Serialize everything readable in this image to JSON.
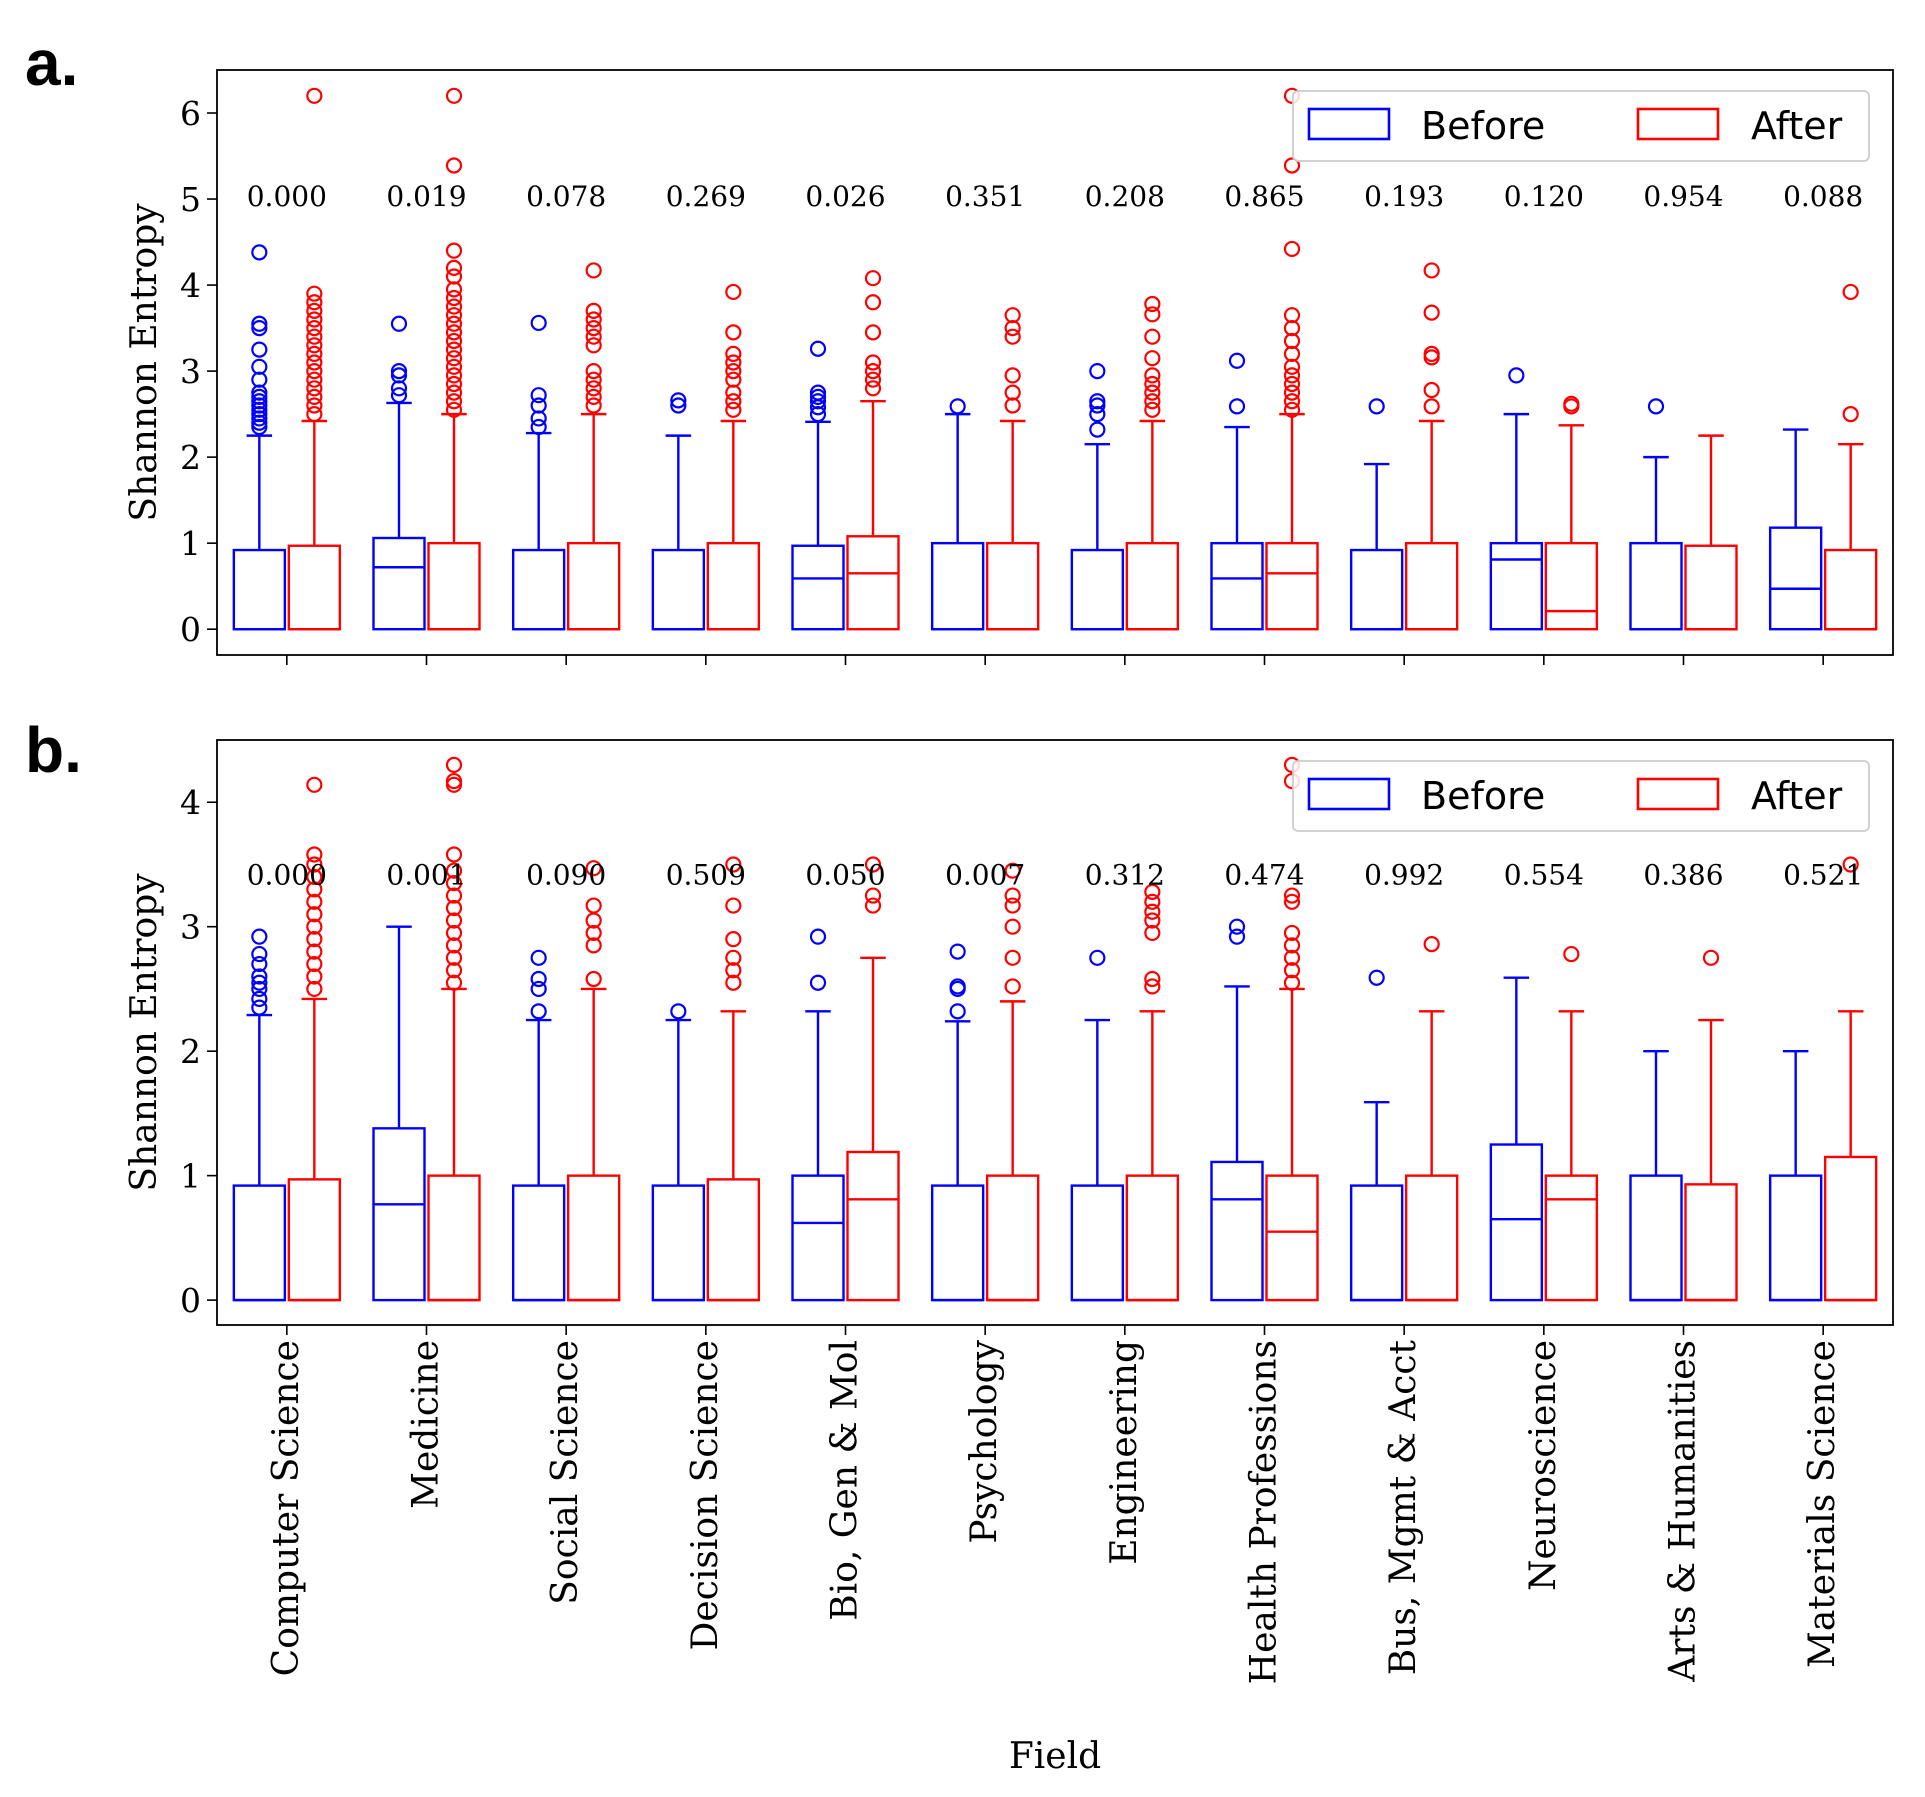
{
  "chart_data": {
    "type": "box",
    "xlabel": "Field",
    "categories": [
      "Computer Science",
      "Medicine",
      "Social Science",
      "Decision Science",
      "Bio, Gen & Mol",
      "Psychology",
      "Engineering",
      "Health Professions",
      "Bus, Mgmt & Acct",
      "Neuroscience",
      "Arts & Humanities",
      "Materials Science"
    ],
    "legend": {
      "position": "top-right",
      "entries": [
        "Before",
        "After"
      ]
    },
    "colors": {
      "before": "#0000ff",
      "after": "#ff0000"
    },
    "panels": [
      {
        "letter": "a.",
        "ylabel": "Shannon Entropy",
        "ylim": [
          -0.3,
          6.5
        ],
        "yticks": [
          "0",
          "1",
          "2",
          "3",
          "4",
          "5",
          "6"
        ],
        "pvalues": [
          "0.000",
          "0.019",
          "0.078",
          "0.269",
          "0.026",
          "0.351",
          "0.208",
          "0.865",
          "0.193",
          "0.120",
          "0.954",
          "0.088"
        ],
        "before": [
          {
            "q1": 0,
            "median": 0,
            "q3": 0.92,
            "whislo": 0,
            "whishi": 2.25,
            "fliers": [
              2.35,
              2.4,
              2.45,
              2.5,
              2.55,
              2.6,
              2.65,
              2.7,
              2.75,
              2.9,
              3.05,
              3.25,
              3.5,
              3.55,
              4.38
            ]
          },
          {
            "q1": 0,
            "median": 0.72,
            "q3": 1.06,
            "whislo": 0,
            "whishi": 2.63,
            "fliers": [
              2.72,
              2.8,
              2.95,
              3.0,
              3.55
            ]
          },
          {
            "q1": 0,
            "median": 0,
            "q3": 0.92,
            "whislo": 0,
            "whishi": 2.28,
            "fliers": [
              2.35,
              2.45,
              2.6,
              2.72,
              3.56
            ]
          },
          {
            "q1": 0,
            "median": 0,
            "q3": 0.92,
            "whislo": 0,
            "whishi": 2.25,
            "fliers": [
              2.6,
              2.66
            ]
          },
          {
            "q1": 0,
            "median": 0.59,
            "q3": 0.97,
            "whislo": 0,
            "whishi": 2.41,
            "fliers": [
              2.5,
              2.58,
              2.65,
              2.7,
              2.75,
              3.26
            ]
          },
          {
            "q1": 0,
            "median": 0,
            "q3": 1.0,
            "whislo": 0,
            "whishi": 2.5,
            "fliers": [
              2.59
            ]
          },
          {
            "q1": 0,
            "median": 0,
            "q3": 0.92,
            "whislo": 0,
            "whishi": 2.15,
            "fliers": [
              2.32,
              2.5,
              2.6,
              2.65,
              3.0
            ]
          },
          {
            "q1": 0,
            "median": 0.59,
            "q3": 1.0,
            "whislo": 0,
            "whishi": 2.35,
            "fliers": [
              2.59,
              3.12
            ]
          },
          {
            "q1": 0,
            "median": 0,
            "q3": 0.92,
            "whislo": 0,
            "whishi": 1.92,
            "fliers": [
              2.59
            ]
          },
          {
            "q1": 0,
            "median": 0.81,
            "q3": 1.0,
            "whislo": 0,
            "whishi": 2.5,
            "fliers": [
              2.95
            ]
          },
          {
            "q1": 0,
            "median": 0,
            "q3": 1.0,
            "whislo": 0,
            "whishi": 2.0,
            "fliers": [
              2.59
            ]
          },
          {
            "q1": 0,
            "median": 0.47,
            "q3": 1.18,
            "whislo": 0,
            "whishi": 2.32,
            "fliers": []
          }
        ],
        "after": [
          {
            "q1": 0,
            "median": 0,
            "q3": 0.97,
            "whislo": 0,
            "whishi": 2.42,
            "fliers": [
              2.5,
              2.6,
              2.7,
              2.8,
              2.9,
              3.0,
              3.1,
              3.2,
              3.3,
              3.4,
              3.5,
              3.6,
              3.7,
              3.8,
              3.9,
              6.2
            ]
          },
          {
            "q1": 0,
            "median": 0,
            "q3": 1.0,
            "whislo": 0,
            "whishi": 2.5,
            "fliers": [
              2.55,
              2.65,
              2.75,
              2.85,
              2.95,
              3.05,
              3.15,
              3.25,
              3.35,
              3.45,
              3.55,
              3.65,
              3.75,
              3.85,
              3.95,
              4.1,
              4.2,
              4.4,
              5.39,
              6.2
            ]
          },
          {
            "q1": 0,
            "median": 0,
            "q3": 1.0,
            "whislo": 0,
            "whishi": 2.5,
            "fliers": [
              2.6,
              2.7,
              2.8,
              2.9,
              3.0,
              3.3,
              3.4,
              3.5,
              3.6,
              3.7,
              4.17
            ]
          },
          {
            "q1": 0,
            "median": 0,
            "q3": 1.0,
            "whislo": 0,
            "whishi": 2.42,
            "fliers": [
              2.55,
              2.65,
              2.75,
              2.9,
              3.0,
              3.1,
              3.2,
              3.45,
              3.92
            ]
          },
          {
            "q1": 0,
            "median": 0.65,
            "q3": 1.08,
            "whislo": 0,
            "whishi": 2.65,
            "fliers": [
              2.8,
              2.9,
              3.0,
              3.1,
              3.45,
              3.8,
              4.08
            ]
          },
          {
            "q1": 0,
            "median": 0,
            "q3": 1.0,
            "whislo": 0,
            "whishi": 2.42,
            "fliers": [
              2.6,
              2.75,
              2.95,
              3.4,
              3.5,
              3.65
            ]
          },
          {
            "q1": 0,
            "median": 0,
            "q3": 1.0,
            "whislo": 0,
            "whishi": 2.42,
            "fliers": [
              2.55,
              2.65,
              2.75,
              2.85,
              2.95,
              3.15,
              3.4,
              3.66,
              3.78
            ]
          },
          {
            "q1": 0,
            "median": 0.65,
            "q3": 1.0,
            "whislo": 0,
            "whishi": 2.5,
            "fliers": [
              2.55,
              2.65,
              2.75,
              2.85,
              2.95,
              3.05,
              3.2,
              3.35,
              3.5,
              3.65,
              4.42,
              5.39,
              6.2
            ]
          },
          {
            "q1": 0,
            "median": 0,
            "q3": 1.0,
            "whislo": 0,
            "whishi": 2.42,
            "fliers": [
              2.59,
              2.78,
              3.16,
              3.2,
              3.68,
              4.17
            ]
          },
          {
            "q1": 0,
            "median": 0.21,
            "q3": 1.0,
            "whislo": 0,
            "whishi": 2.37,
            "fliers": [
              2.59,
              2.62
            ]
          },
          {
            "q1": 0,
            "median": 0,
            "q3": 0.97,
            "whislo": 0,
            "whishi": 2.25,
            "fliers": []
          },
          {
            "q1": 0,
            "median": 0,
            "q3": 0.92,
            "whislo": 0,
            "whishi": 2.15,
            "fliers": [
              2.5,
              3.92
            ]
          }
        ]
      },
      {
        "letter": "b.",
        "ylabel": "Shannon Entropy",
        "ylim": [
          -0.2,
          4.5
        ],
        "yticks": [
          "0",
          "1",
          "2",
          "3",
          "4"
        ],
        "pvalues": [
          "0.000",
          "0.001",
          "0.090",
          "0.509",
          "0.050",
          "0.007",
          "0.312",
          "0.474",
          "0.992",
          "0.554",
          "0.386",
          "0.521"
        ],
        "before": [
          {
            "q1": 0,
            "median": 0,
            "q3": 0.92,
            "whislo": 0,
            "whishi": 2.29,
            "fliers": [
              2.35,
              2.42,
              2.5,
              2.55,
              2.6,
              2.7,
              2.78,
              2.92
            ]
          },
          {
            "q1": 0,
            "median": 0.77,
            "q3": 1.38,
            "whislo": 0,
            "whishi": 3.0,
            "fliers": []
          },
          {
            "q1": 0,
            "median": 0,
            "q3": 0.92,
            "whislo": 0,
            "whishi": 2.25,
            "fliers": [
              2.32,
              2.5,
              2.58,
              2.75
            ]
          },
          {
            "q1": 0,
            "median": 0,
            "q3": 0.92,
            "whislo": 0,
            "whishi": 2.25,
            "fliers": [
              2.32
            ]
          },
          {
            "q1": 0,
            "median": 0.62,
            "q3": 1.0,
            "whislo": 0,
            "whishi": 2.32,
            "fliers": [
              2.55,
              2.92
            ]
          },
          {
            "q1": 0,
            "median": 0,
            "q3": 0.92,
            "whislo": 0,
            "whishi": 2.24,
            "fliers": [
              2.32,
              2.5,
              2.52,
              2.8
            ]
          },
          {
            "q1": 0,
            "median": 0,
            "q3": 0.92,
            "whislo": 0,
            "whishi": 2.25,
            "fliers": [
              2.75
            ]
          },
          {
            "q1": 0,
            "median": 0.81,
            "q3": 1.11,
            "whislo": 0,
            "whishi": 2.52,
            "fliers": [
              2.92,
              3.0
            ]
          },
          {
            "q1": 0,
            "median": 0,
            "q3": 0.92,
            "whislo": 0,
            "whishi": 1.59,
            "fliers": [
              2.59
            ]
          },
          {
            "q1": 0,
            "median": 0.65,
            "q3": 1.25,
            "whislo": 0,
            "whishi": 2.59,
            "fliers": []
          },
          {
            "q1": 0,
            "median": 0,
            "q3": 1.0,
            "whislo": 0,
            "whishi": 2.0,
            "fliers": []
          },
          {
            "q1": 0,
            "median": 0,
            "q3": 1.0,
            "whislo": 0,
            "whishi": 2.0,
            "fliers": []
          }
        ],
        "after": [
          {
            "q1": 0,
            "median": 0,
            "q3": 0.97,
            "whislo": 0,
            "whishi": 2.42,
            "fliers": [
              2.5,
              2.6,
              2.7,
              2.8,
              2.9,
              3.0,
              3.1,
              3.2,
              3.3,
              3.4,
              3.5,
              3.58,
              4.14
            ]
          },
          {
            "q1": 0,
            "median": 0,
            "q3": 1.0,
            "whislo": 0,
            "whishi": 2.5,
            "fliers": [
              2.55,
              2.65,
              2.75,
              2.85,
              2.95,
              3.05,
              3.15,
              3.25,
              3.35,
              3.45,
              3.58,
              4.14,
              4.17,
              4.3
            ]
          },
          {
            "q1": 0,
            "median": 0,
            "q3": 1.0,
            "whislo": 0,
            "whishi": 2.5,
            "fliers": [
              2.58,
              2.85,
              2.95,
              3.05,
              3.17,
              3.47
            ]
          },
          {
            "q1": 0,
            "median": 0,
            "q3": 0.97,
            "whislo": 0,
            "whishi": 2.32,
            "fliers": [
              2.55,
              2.65,
              2.75,
              2.9,
              3.17,
              3.5
            ]
          },
          {
            "q1": 0,
            "median": 0.81,
            "q3": 1.19,
            "whislo": 0,
            "whishi": 2.75,
            "fliers": [
              3.17,
              3.25,
              3.5
            ]
          },
          {
            "q1": 0,
            "median": 0,
            "q3": 1.0,
            "whislo": 0,
            "whishi": 2.4,
            "fliers": [
              2.52,
              2.75,
              3.0,
              3.17,
              3.25,
              3.45
            ]
          },
          {
            "q1": 0,
            "median": 0,
            "q3": 1.0,
            "whislo": 0,
            "whishi": 2.32,
            "fliers": [
              2.52,
              2.58,
              2.95,
              3.05,
              3.12,
              3.2,
              3.28
            ]
          },
          {
            "q1": 0,
            "median": 0.55,
            "q3": 1.0,
            "whislo": 0,
            "whishi": 2.5,
            "fliers": [
              2.55,
              2.65,
              2.75,
              2.85,
              2.95,
              3.2,
              3.25,
              4.17,
              4.3
            ]
          },
          {
            "q1": 0,
            "median": 0,
            "q3": 1.0,
            "whislo": 0,
            "whishi": 2.32,
            "fliers": [
              2.86
            ]
          },
          {
            "q1": 0,
            "median": 0.81,
            "q3": 1.0,
            "whislo": 0,
            "whishi": 2.32,
            "fliers": [
              2.78
            ]
          },
          {
            "q1": 0,
            "median": 0,
            "q3": 0.93,
            "whislo": 0,
            "whishi": 2.25,
            "fliers": [
              2.75
            ]
          },
          {
            "q1": 0,
            "median": 0,
            "q3": 1.15,
            "whislo": 0,
            "whishi": 2.32,
            "fliers": [
              3.5
            ]
          }
        ]
      }
    ]
  }
}
